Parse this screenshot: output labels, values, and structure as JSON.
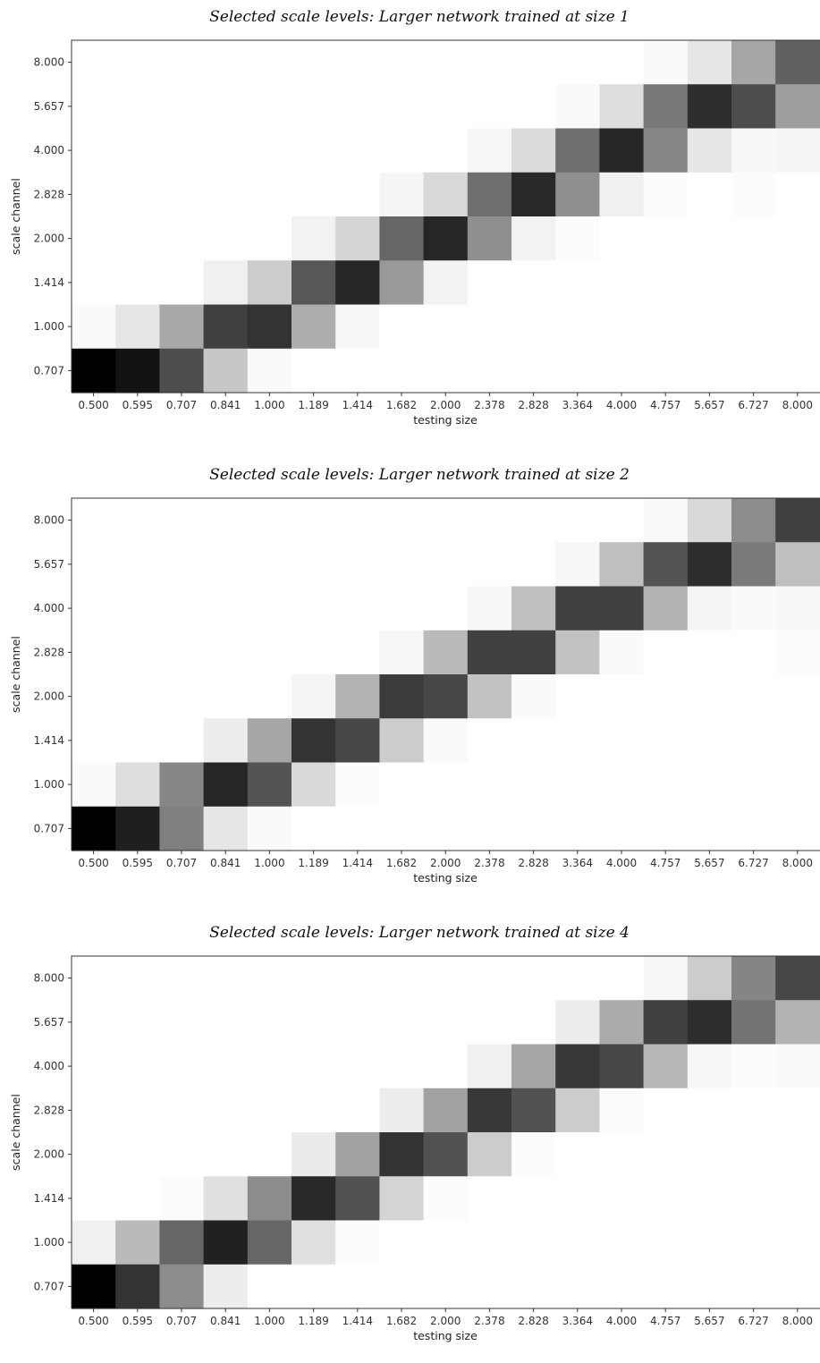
{
  "chart_data": [
    {
      "type": "heatmap",
      "title": "Selected scale levels: Larger network trained at size 1",
      "xlabel": "testing size",
      "ylabel": "scale channel",
      "x": [
        "0.500",
        "0.595",
        "0.707",
        "0.841",
        "1.000",
        "1.189",
        "1.414",
        "1.682",
        "2.000",
        "2.378",
        "2.828",
        "3.364",
        "4.000",
        "4.757",
        "5.657",
        "6.727",
        "8.000"
      ],
      "y": [
        "8.000",
        "5.657",
        "4.000",
        "2.828",
        "2.000",
        "1.414",
        "1.000",
        "0.707"
      ],
      "colormap": "grayscale (white = low, black = high)",
      "values": [
        [
          0,
          0,
          0,
          0,
          0,
          0,
          0,
          0,
          0,
          0,
          0,
          0,
          0,
          0.02,
          0.1,
          0.35,
          0.62
        ],
        [
          0,
          0,
          0,
          0,
          0,
          0,
          0,
          0,
          0,
          0,
          0,
          0.02,
          0.13,
          0.53,
          0.82,
          0.7,
          0.38
        ],
        [
          0,
          0,
          0,
          0,
          0,
          0,
          0,
          0,
          0,
          0.03,
          0.14,
          0.57,
          0.85,
          0.47,
          0.1,
          0.03,
          0.04
        ],
        [
          0,
          0,
          0,
          0,
          0,
          0,
          0,
          0.04,
          0.15,
          0.57,
          0.84,
          0.44,
          0.06,
          0.01,
          0,
          0.01,
          0
        ],
        [
          0,
          0,
          0,
          0,
          0,
          0.05,
          0.16,
          0.6,
          0.85,
          0.44,
          0.05,
          0.01,
          0,
          0,
          0,
          0,
          0
        ],
        [
          0,
          0,
          0,
          0.06,
          0.2,
          0.66,
          0.85,
          0.4,
          0.05,
          0,
          0,
          0,
          0,
          0,
          0,
          0,
          0
        ],
        [
          0.02,
          0.1,
          0.34,
          0.75,
          0.8,
          0.32,
          0.03,
          0,
          0,
          0,
          0,
          0,
          0,
          0,
          0,
          0,
          0
        ],
        [
          1.0,
          0.93,
          0.7,
          0.22,
          0.02,
          0,
          0,
          0,
          0,
          0,
          0,
          0,
          0,
          0,
          0,
          0,
          0
        ]
      ]
    },
    {
      "type": "heatmap",
      "title": "Selected scale levels: Larger network trained at size 2",
      "xlabel": "testing size",
      "ylabel": "scale channel",
      "x": [
        "0.500",
        "0.595",
        "0.707",
        "0.841",
        "1.000",
        "1.189",
        "1.414",
        "1.682",
        "2.000",
        "2.378",
        "2.828",
        "3.364",
        "4.000",
        "4.757",
        "5.657",
        "6.727",
        "8.000"
      ],
      "y": [
        "8.000",
        "5.657",
        "4.000",
        "2.828",
        "2.000",
        "1.414",
        "1.000",
        "0.707"
      ],
      "colormap": "grayscale (white = low, black = high)",
      "values": [
        [
          0,
          0,
          0,
          0,
          0,
          0,
          0,
          0,
          0,
          0,
          0,
          0,
          0,
          0.02,
          0.15,
          0.45,
          0.75
        ],
        [
          0,
          0,
          0,
          0,
          0,
          0,
          0,
          0,
          0,
          0,
          0,
          0.03,
          0.25,
          0.67,
          0.82,
          0.52,
          0.25
        ],
        [
          0,
          0,
          0,
          0,
          0,
          0,
          0,
          0,
          0,
          0.03,
          0.25,
          0.75,
          0.75,
          0.3,
          0.04,
          0.02,
          0.03
        ],
        [
          0,
          0,
          0,
          0,
          0,
          0,
          0,
          0.03,
          0.27,
          0.75,
          0.75,
          0.24,
          0.02,
          0,
          0,
          0,
          0.01
        ],
        [
          0,
          0,
          0,
          0,
          0,
          0.04,
          0.3,
          0.77,
          0.72,
          0.24,
          0.02,
          0,
          0,
          0,
          0,
          0,
          0
        ],
        [
          0,
          0,
          0,
          0.07,
          0.35,
          0.8,
          0.72,
          0.2,
          0.02,
          0,
          0,
          0,
          0,
          0,
          0,
          0,
          0
        ],
        [
          0.02,
          0.13,
          0.47,
          0.85,
          0.67,
          0.15,
          0.01,
          0,
          0,
          0,
          0,
          0,
          0,
          0,
          0,
          0,
          0
        ],
        [
          1.0,
          0.88,
          0.5,
          0.1,
          0.02,
          0,
          0,
          0,
          0,
          0,
          0,
          0,
          0,
          0,
          0,
          0,
          0
        ]
      ]
    },
    {
      "type": "heatmap",
      "title": "Selected scale levels: Larger network trained at size 4",
      "xlabel": "testing size",
      "ylabel": "scale channel",
      "x": [
        "0.500",
        "0.595",
        "0.707",
        "0.841",
        "1.000",
        "1.189",
        "1.414",
        "1.682",
        "2.000",
        "2.378",
        "2.828",
        "3.364",
        "4.000",
        "4.757",
        "5.657",
        "6.727",
        "8.000"
      ],
      "y": [
        "8.000",
        "5.657",
        "4.000",
        "2.828",
        "2.000",
        "1.414",
        "1.000",
        "0.707"
      ],
      "colormap": "grayscale (white = low, black = high)",
      "values": [
        [
          0,
          0,
          0,
          0,
          0,
          0,
          0,
          0,
          0,
          0,
          0,
          0,
          0,
          0.03,
          0.2,
          0.48,
          0.72
        ],
        [
          0,
          0,
          0,
          0,
          0,
          0,
          0,
          0,
          0,
          0,
          0,
          0.07,
          0.33,
          0.75,
          0.82,
          0.55,
          0.3
        ],
        [
          0,
          0,
          0,
          0,
          0,
          0,
          0,
          0,
          0,
          0.06,
          0.35,
          0.78,
          0.72,
          0.28,
          0.03,
          0.01,
          0.02
        ],
        [
          0,
          0,
          0,
          0,
          0,
          0,
          0,
          0.07,
          0.37,
          0.78,
          0.68,
          0.2,
          0.01,
          0,
          0,
          0,
          0
        ],
        [
          0,
          0,
          0,
          0,
          0,
          0.08,
          0.37,
          0.8,
          0.68,
          0.2,
          0.01,
          0,
          0,
          0,
          0,
          0,
          0
        ],
        [
          0,
          0,
          0.01,
          0.12,
          0.45,
          0.84,
          0.68,
          0.17,
          0.01,
          0,
          0,
          0,
          0,
          0,
          0,
          0,
          0
        ],
        [
          0.06,
          0.27,
          0.6,
          0.87,
          0.6,
          0.12,
          0.01,
          0,
          0,
          0,
          0,
          0,
          0,
          0,
          0,
          0,
          0
        ],
        [
          1.0,
          0.8,
          0.45,
          0.07,
          0,
          0,
          0,
          0,
          0,
          0,
          0,
          0,
          0,
          0,
          0,
          0,
          0
        ]
      ]
    }
  ]
}
